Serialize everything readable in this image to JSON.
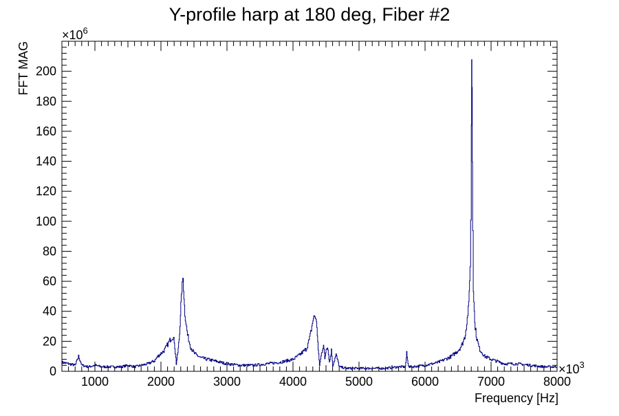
{
  "chart_data": {
    "type": "line",
    "title": "Y-profile harp at 180 deg, Fiber #2",
    "xlabel": "Frequency [Hz]",
    "ylabel": "FFT MAG",
    "x_exponent_label": "×10",
    "x_exponent_power": "3",
    "y_exponent_label": "×10",
    "y_exponent_power": "6",
    "xlim": [
      500,
      8000
    ],
    "ylim": [
      0,
      220
    ],
    "x_major_ticks": [
      1000,
      2000,
      3000,
      4000,
      5000,
      6000,
      7000,
      8000
    ],
    "x_tick_labels": [
      "1000",
      "2000",
      "3000",
      "4000",
      "5000",
      "6000",
      "7000",
      "8000"
    ],
    "y_major_ticks": [
      0,
      20,
      40,
      60,
      80,
      100,
      120,
      140,
      160,
      180,
      200
    ],
    "y_tick_labels": [
      "0",
      "20",
      "40",
      "60",
      "80",
      "100",
      "120",
      "140",
      "160",
      "180",
      "200"
    ],
    "grid": false,
    "line_color": "#000080",
    "series": [
      {
        "x": [
          500,
          600,
          700,
          750,
          800,
          900,
          1000,
          1100,
          1200,
          1300,
          1400,
          1500,
          1600,
          1700,
          1800,
          1900,
          1950,
          2000,
          2050,
          2100,
          2150,
          2180,
          2200,
          2230,
          2260,
          2280,
          2300,
          2320,
          2330,
          2340,
          2360,
          2400,
          2450,
          2500,
          2600,
          2700,
          2800,
          2900,
          3000,
          3200,
          3400,
          3600,
          3800,
          4000,
          4100,
          4200,
          4250,
          4300,
          4320,
          4340,
          4360,
          4380,
          4400,
          4430,
          4460,
          4480,
          4500,
          4520,
          4550,
          4580,
          4600,
          4650,
          4700,
          4800,
          5000,
          5200,
          5400,
          5600,
          5700,
          5720,
          5740,
          5760,
          5800,
          6000,
          6200,
          6400,
          6500,
          6550,
          6600,
          6630,
          6660,
          6680,
          6690,
          6700,
          6705,
          6710,
          6715,
          6720,
          6730,
          6750,
          6780,
          6820,
          6900,
          7000,
          7200,
          7400,
          7600,
          7800,
          8000
        ],
        "y": [
          6,
          5,
          4,
          10,
          4,
          3,
          4,
          3,
          3,
          3,
          3,
          4,
          3,
          4,
          5,
          7,
          10,
          12,
          14,
          18,
          22,
          23,
          20,
          5,
          15,
          25,
          45,
          58,
          62,
          55,
          38,
          24,
          16,
          12,
          9,
          8,
          7,
          6,
          5,
          4,
          4,
          5,
          6,
          8,
          11,
          15,
          22,
          34,
          37,
          36,
          30,
          14,
          4,
          12,
          18,
          8,
          15,
          17,
          6,
          14,
          4,
          11,
          3,
          2,
          2,
          2,
          2,
          3,
          3,
          12,
          5,
          3,
          3,
          4,
          6,
          10,
          14,
          17,
          23,
          32,
          45,
          70,
          100,
          165,
          208,
          190,
          140,
          95,
          55,
          32,
          22,
          15,
          10,
          8,
          5,
          5,
          4,
          3,
          3
        ]
      }
    ]
  }
}
